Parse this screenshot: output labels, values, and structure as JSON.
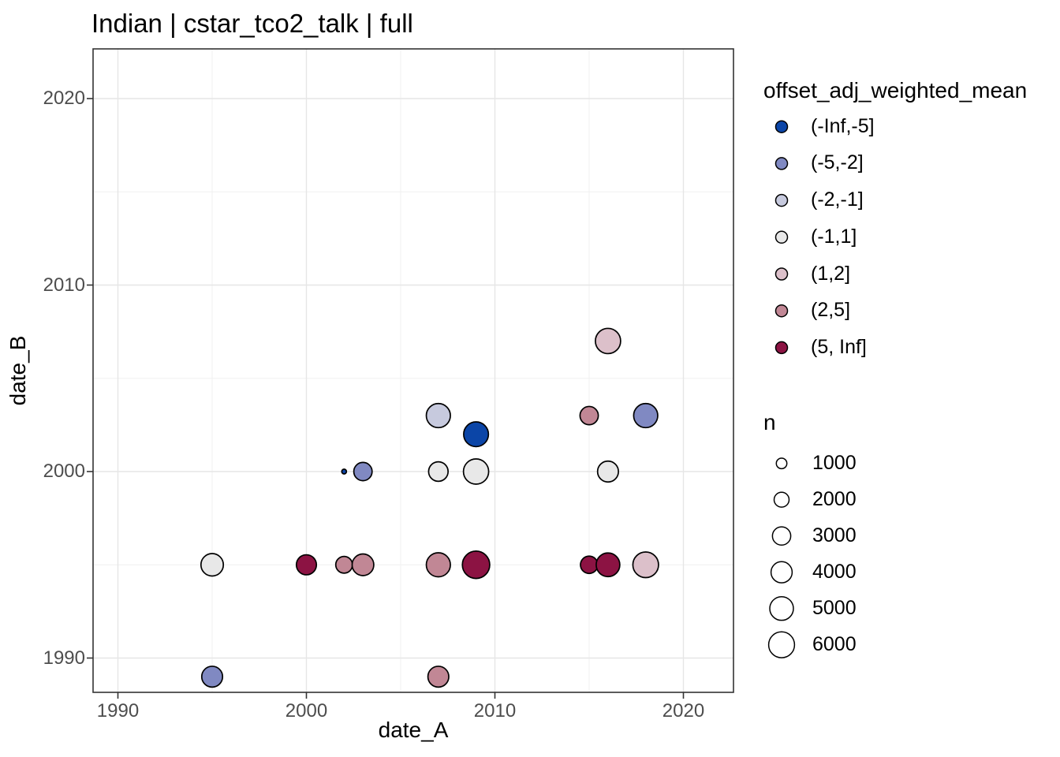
{
  "chart_data": {
    "type": "scatter",
    "title": "Indian | cstar_tco2_talk | full",
    "xlabel": "date_A",
    "ylabel": "date_B",
    "x_ticks": [
      1990,
      2000,
      2010,
      2020
    ],
    "y_ticks": [
      1990,
      2000,
      2010,
      2020
    ],
    "x_minor_gridlines": [
      1995,
      2005,
      2015
    ],
    "y_minor_gridlines": [
      1995,
      2005,
      2015
    ],
    "xlim": [
      1988.7,
      2022.7
    ],
    "ylim": [
      1988.2,
      2022.7
    ],
    "grid": "on",
    "legend_position": "right",
    "panel_border_color": "#333333",
    "major_grid_color": "#e6e6e6",
    "minor_grid_color": "#f0f0f0",
    "tick_label_color": "#4d4d4d",
    "point_outline_color": "#000000",
    "color_legend": {
      "title": "offset_adj_weighted_mean",
      "entries": [
        {
          "label": "(-Inf,-5]",
          "color": "#0b45a7"
        },
        {
          "label": "(-5,-2]",
          "color": "#8089c2"
        },
        {
          "label": "(-2,-1]",
          "color": "#c7cade"
        },
        {
          "label": "(-1,1]",
          "color": "#e8e8e8"
        },
        {
          "label": "(1,2]",
          "color": "#dcc0ca"
        },
        {
          "label": "(2,5]",
          "color": "#c18795"
        },
        {
          "label": "(5, Inf]",
          "color": "#8c1343"
        }
      ]
    },
    "size_legend": {
      "title": "n",
      "entries": [
        1000,
        2000,
        3000,
        4000,
        5000,
        6000
      ]
    },
    "points": [
      {
        "date_A": 1995,
        "date_B": 1995,
        "bin": "(-1,1]",
        "n": 4500
      },
      {
        "date_A": 1995,
        "date_B": 1989,
        "bin": "(-5,-2]",
        "n": 3900
      },
      {
        "date_A": 2000,
        "date_B": 1995,
        "bin": "(5, Inf]",
        "n": 3600
      },
      {
        "date_A": 2002,
        "date_B": 2000,
        "bin": "(-Inf,-5]",
        "n": 200
      },
      {
        "date_A": 2002,
        "date_B": 1995,
        "bin": "(2,5]",
        "n": 2500
      },
      {
        "date_A": 2003,
        "date_B": 2000,
        "bin": "(-5,-2]",
        "n": 3000
      },
      {
        "date_A": 2003,
        "date_B": 1995,
        "bin": "(2,5]",
        "n": 4200
      },
      {
        "date_A": 2007,
        "date_B": 2003,
        "bin": "(-2,-1]",
        "n": 5200
      },
      {
        "date_A": 2007,
        "date_B": 2000,
        "bin": "(-1,1]",
        "n": 3400
      },
      {
        "date_A": 2007,
        "date_B": 1995,
        "bin": "(2,5]",
        "n": 5200
      },
      {
        "date_A": 2007,
        "date_B": 1989,
        "bin": "(2,5]",
        "n": 3900
      },
      {
        "date_A": 2009,
        "date_B": 2002,
        "bin": "(-Inf,-5]",
        "n": 5500
      },
      {
        "date_A": 2009,
        "date_B": 2000,
        "bin": "(-1,1]",
        "n": 5700
      },
      {
        "date_A": 2009,
        "date_B": 1995,
        "bin": "(5, Inf]",
        "n": 6700
      },
      {
        "date_A": 2015,
        "date_B": 2003,
        "bin": "(2,5]",
        "n": 3000
      },
      {
        "date_A": 2015,
        "date_B": 1995,
        "bin": "(5, Inf]",
        "n": 2700
      },
      {
        "date_A": 2016,
        "date_B": 2007,
        "bin": "(1,2]",
        "n": 5700
      },
      {
        "date_A": 2016,
        "date_B": 2000,
        "bin": "(-1,1]",
        "n": 3900
      },
      {
        "date_A": 2016,
        "date_B": 1995,
        "bin": "(5, Inf]",
        "n": 5000
      },
      {
        "date_A": 2018,
        "date_B": 2003,
        "bin": "(-5,-2]",
        "n": 5200
      },
      {
        "date_A": 2018,
        "date_B": 1995,
        "bin": "(1,2]",
        "n": 5900
      }
    ]
  }
}
